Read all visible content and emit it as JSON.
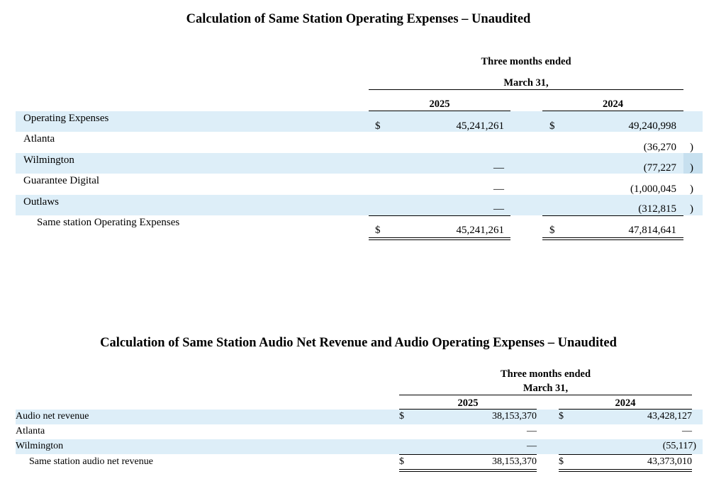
{
  "table1": {
    "title": "Calculation of Same Station Operating Expenses – Unaudited",
    "header_line1": "Three months ended",
    "header_line2": "March 31,",
    "col_2025": "2025",
    "col_2024": "2024",
    "rows": [
      {
        "label": "Operating Expenses",
        "dollar_2025": "$",
        "val_2025": "45,241,261",
        "dollar_2024": "$",
        "val_2024": "49,240,998",
        "paren_2024": ""
      },
      {
        "label": "Atlanta",
        "dollar_2025": "",
        "val_2025": "",
        "dollar_2024": "",
        "val_2024": "(36,270",
        "paren_2024": ")"
      },
      {
        "label": "Wilmington",
        "dollar_2025": "",
        "val_2025": "—",
        "dollar_2024": "",
        "val_2024": "(77,227",
        "paren_2024": ")"
      },
      {
        "label": "Guarantee Digital",
        "dollar_2025": "",
        "val_2025": "—",
        "dollar_2024": "",
        "val_2024": "(1,000,045",
        "paren_2024": ")"
      },
      {
        "label": "Outlaws",
        "dollar_2025": "",
        "val_2025": "—",
        "dollar_2024": "",
        "val_2024": "(312,815",
        "paren_2024": ")"
      },
      {
        "label": "Same station Operating Expenses",
        "dollar_2025": "$",
        "val_2025": "45,241,261",
        "dollar_2024": "$",
        "val_2024": "47,814,641",
        "paren_2024": ""
      }
    ]
  },
  "table2": {
    "title": "Calculation of Same Station Audio Net Revenue and Audio Operating Expenses – Unaudited",
    "header_line1": "Three months ended",
    "header_line2": "March 31,",
    "col_2025": "2025",
    "col_2024": "2024",
    "rows": [
      {
        "label": "Audio net revenue",
        "dollar_2025": "$",
        "val_2025": "38,153,370",
        "dollar_2024": "$",
        "val_2024": "43,428,127"
      },
      {
        "label": "Atlanta",
        "dollar_2025": "",
        "val_2025": "—",
        "dollar_2024": "",
        "val_2024": "—"
      },
      {
        "label": "Wilmington",
        "dollar_2025": "",
        "val_2025": "—",
        "dollar_2024": "",
        "val_2024": "(55,117)"
      },
      {
        "label": "Same station audio net revenue",
        "dollar_2025": "$",
        "val_2025": "38,153,370",
        "dollar_2024": "$",
        "val_2024": "43,373,010"
      }
    ]
  },
  "colors": {
    "band": "#ddeef8",
    "band_highlight": "#c7e0ef"
  }
}
